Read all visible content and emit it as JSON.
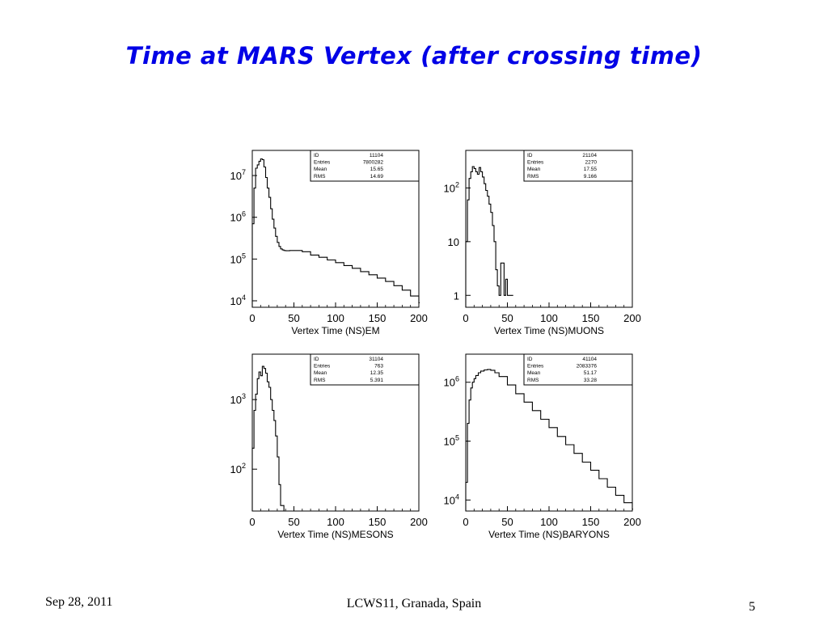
{
  "slide": {
    "title": "Time at MARS Vertex (after crossing time)",
    "footer_date": "Sep 28, 2011",
    "footer_conference": "LCWS11, Granada, Spain",
    "page_number": "5"
  },
  "colors": {
    "title": "#0000e6",
    "line": "#000000"
  },
  "chart_data": [
    {
      "type": "line",
      "step": true,
      "xlabel": "Vertex Time (NS)EM",
      "xlim": [
        0,
        200
      ],
      "ylim": [
        7000,
        40000000
      ],
      "yscale": "log",
      "xticks": [
        0,
        50,
        100,
        150,
        200
      ],
      "yticks": [
        {
          "value": 10000,
          "base": "10",
          "exp": "4"
        },
        {
          "value": 100000,
          "base": "10",
          "exp": "5"
        },
        {
          "value": 1000000,
          "base": "10",
          "exp": "6"
        },
        {
          "value": 10000000,
          "base": "10",
          "exp": "7"
        }
      ],
      "stats": [
        {
          "label": "ID",
          "value": "11104"
        },
        {
          "label": "Entries",
          "value": "7800282"
        },
        {
          "label": "Mean",
          "value": "15.65"
        },
        {
          "label": "RMS",
          "value": "14.69"
        }
      ],
      "x": [
        0,
        2,
        4,
        6,
        8,
        10,
        12,
        14,
        16,
        18,
        20,
        22,
        24,
        26,
        28,
        30,
        32,
        34,
        36,
        38,
        40,
        45,
        50,
        60,
        70,
        80,
        90,
        100,
        110,
        120,
        130,
        140,
        150,
        160,
        170,
        180,
        190,
        200
      ],
      "y": [
        700000,
        5000000,
        15000000,
        18000000,
        22000000,
        25000000,
        24000000,
        16000000,
        9000000,
        5000000,
        3000000,
        1600000,
        900000,
        550000,
        350000,
        250000,
        200000,
        175000,
        165000,
        160000,
        158000,
        160000,
        160000,
        150000,
        125000,
        110000,
        95000,
        82000,
        70000,
        60000,
        50000,
        42000,
        35000,
        29000,
        23000,
        18000,
        13000,
        9000
      ]
    },
    {
      "type": "line",
      "step": true,
      "xlabel": "Vertex Time (NS)MUONS",
      "xlim": [
        0,
        200
      ],
      "ylim": [
        0.6,
        500
      ],
      "yscale": "log",
      "xticks": [
        0,
        50,
        100,
        150,
        200
      ],
      "yticks": [
        {
          "value": 1,
          "base": "1",
          "exp": ""
        },
        {
          "value": 10,
          "base": "10",
          "exp": ""
        },
        {
          "value": 100,
          "base": "10",
          "exp": "2"
        }
      ],
      "stats": [
        {
          "label": "ID",
          "value": "21104"
        },
        {
          "label": "Entries",
          "value": "2270"
        },
        {
          "label": "Mean",
          "value": "17.55"
        },
        {
          "label": "RMS",
          "value": "9.166"
        }
      ],
      "x": [
        0,
        2,
        4,
        6,
        8,
        10,
        12,
        14,
        16,
        18,
        20,
        22,
        24,
        26,
        28,
        30,
        32,
        34,
        36,
        38,
        40,
        42,
        44,
        46,
        48,
        50,
        52,
        54,
        56
      ],
      "y": [
        10,
        60,
        150,
        200,
        250,
        230,
        200,
        180,
        240,
        200,
        160,
        120,
        90,
        70,
        50,
        35,
        20,
        10,
        3,
        1.5,
        1,
        4,
        4,
        1,
        2,
        1,
        1,
        1,
        1
      ]
    },
    {
      "type": "line",
      "step": true,
      "xlabel": "Vertex Time (NS)MESONS",
      "xlim": [
        0,
        200
      ],
      "ylim": [
        25,
        4500
      ],
      "yscale": "log",
      "xticks": [
        0,
        50,
        100,
        150,
        200
      ],
      "yticks": [
        {
          "value": 100,
          "base": "10",
          "exp": "2"
        },
        {
          "value": 1000,
          "base": "10",
          "exp": "3"
        }
      ],
      "stats": [
        {
          "label": "ID",
          "value": "31104"
        },
        {
          "label": "Entries",
          "value": "763"
        },
        {
          "label": "Mean",
          "value": "12.35"
        },
        {
          "label": "RMS",
          "value": "5.391"
        }
      ],
      "x": [
        0,
        2,
        4,
        6,
        8,
        10,
        12,
        14,
        16,
        18,
        20,
        22,
        24,
        26,
        28,
        30,
        32,
        34,
        36,
        38,
        40,
        42,
        44
      ],
      "y": [
        200,
        700,
        1200,
        2000,
        2500,
        2200,
        3000,
        2800,
        2400,
        1800,
        1500,
        1000,
        700,
        500,
        300,
        150,
        60,
        30,
        30,
        25,
        25,
        25,
        25
      ]
    },
    {
      "type": "line",
      "step": true,
      "xlabel": "Vertex Time (NS)BARYONS",
      "xlim": [
        0,
        200
      ],
      "ylim": [
        6500,
        3000000
      ],
      "yscale": "log",
      "xticks": [
        0,
        50,
        100,
        150,
        200
      ],
      "yticks": [
        {
          "value": 10000,
          "base": "10",
          "exp": "4"
        },
        {
          "value": 100000,
          "base": "10",
          "exp": "5"
        },
        {
          "value": 1000000,
          "base": "10",
          "exp": "6"
        }
      ],
      "stats": [
        {
          "label": "ID",
          "value": "41104"
        },
        {
          "label": "Entries",
          "value": "2083376"
        },
        {
          "label": "Mean",
          "value": "51.17"
        },
        {
          "label": "RMS",
          "value": "33.28"
        }
      ],
      "x": [
        0,
        2,
        4,
        6,
        8,
        10,
        12,
        15,
        18,
        22,
        26,
        30,
        35,
        40,
        50,
        60,
        70,
        80,
        90,
        100,
        110,
        120,
        130,
        140,
        150,
        160,
        170,
        180,
        190,
        200
      ],
      "y": [
        20000,
        200000,
        500000,
        800000,
        1000000,
        1150000,
        1300000,
        1450000,
        1550000,
        1620000,
        1650000,
        1600000,
        1450000,
        1250000,
        900000,
        640000,
        460000,
        330000,
        235000,
        170000,
        120000,
        87000,
        62000,
        44000,
        32000,
        23000,
        16500,
        12000,
        9000,
        7000
      ]
    }
  ]
}
